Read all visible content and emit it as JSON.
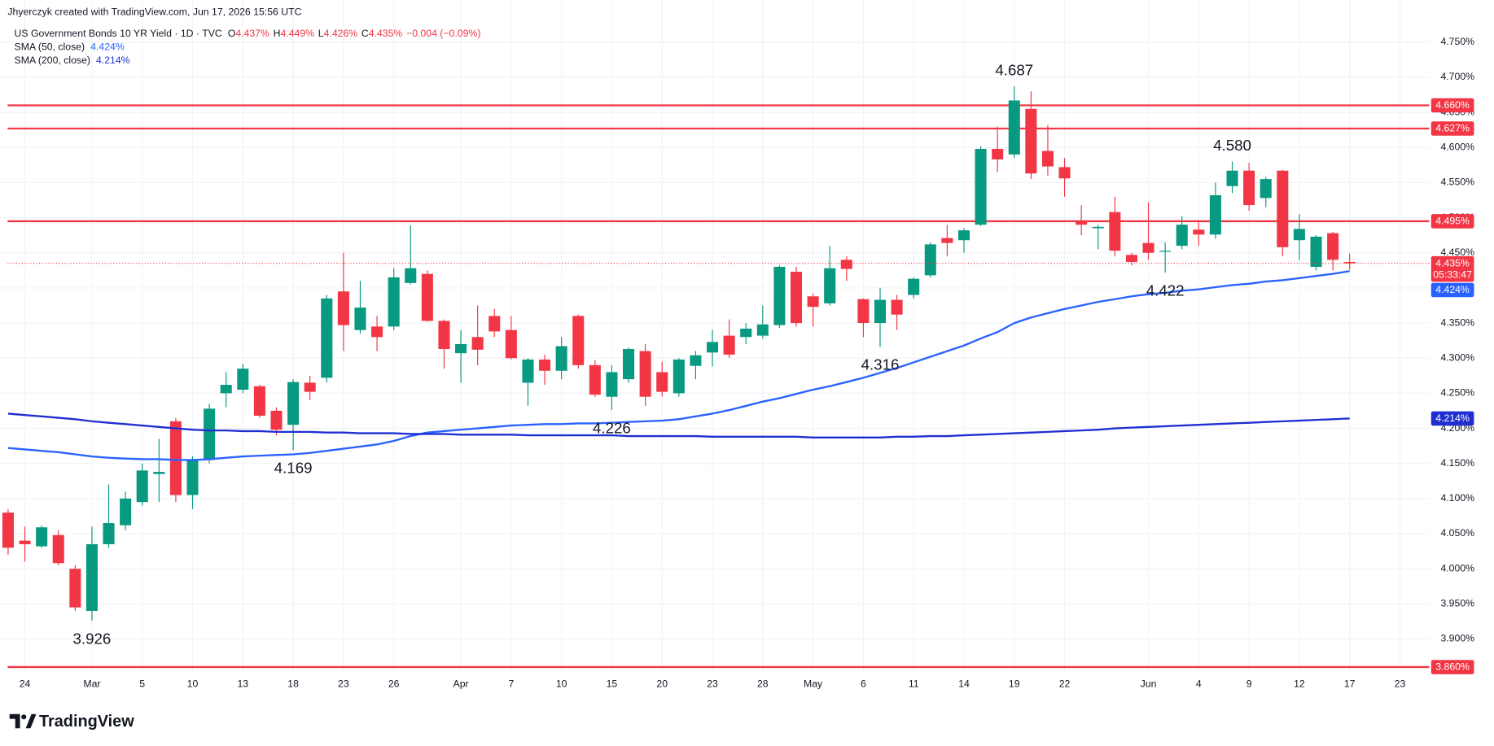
{
  "header": {
    "credit": "Jhyerczyk created with TradingView.com, Jun 17, 2026 15:56 UTC",
    "symbol": "US Government Bonds 10 YR Yield · 1D · TVC",
    "ohlc": [
      {
        "key": "O",
        "text": "4.437%"
      },
      {
        "key": "H",
        "text": "4.449%"
      },
      {
        "key": "L",
        "text": "4.426%"
      },
      {
        "key": "C",
        "text": "4.435%"
      }
    ],
    "change": "−0.004 (−0.09%)"
  },
  "footer": {
    "brand": "TradingView"
  },
  "chart_data": {
    "type": "candlestick",
    "grid": true,
    "up_color": "#089981",
    "down_color": "#f23645",
    "categories": [
      null,
      "24",
      null,
      null,
      null,
      "Mar",
      null,
      null,
      "5",
      null,
      null,
      "10",
      null,
      null,
      "13",
      null,
      null,
      "18",
      null,
      null,
      "23",
      null,
      null,
      "26",
      null,
      null,
      null,
      "Apr",
      null,
      null,
      "7",
      null,
      null,
      "10",
      null,
      null,
      "15",
      null,
      null,
      "20",
      null,
      null,
      "23",
      null,
      null,
      "28",
      null,
      null,
      "May",
      null,
      null,
      "6",
      null,
      null,
      "11",
      null,
      null,
      "14",
      null,
      null,
      "19",
      null,
      null,
      "22",
      null,
      null,
      null,
      null,
      "Jun",
      null,
      null,
      "4",
      null,
      null,
      "9",
      null,
      null,
      "12",
      null,
      null,
      "17",
      null,
      null,
      "23"
    ],
    "open": [
      4.08,
      4.04,
      4.032,
      4.048,
      4.0,
      3.94,
      4.035,
      4.062,
      4.095,
      4.135,
      4.21,
      4.105,
      4.155,
      4.25,
      4.255,
      4.26,
      4.225,
      4.205,
      4.265,
      4.272,
      4.395,
      4.34,
      4.345,
      4.345,
      4.407,
      4.42,
      4.353,
      4.307,
      4.33,
      4.36,
      4.34,
      4.265,
      4.298,
      4.282,
      4.36,
      4.29,
      4.245,
      4.27,
      4.31,
      4.28,
      4.25,
      4.289,
      4.308,
      4.332,
      4.33,
      4.332,
      4.347,
      4.423,
      4.388,
      4.378,
      4.44,
      4.384,
      4.35,
      4.383,
      4.39,
      4.418,
      4.471,
      4.468,
      4.49,
      4.598,
      4.59,
      4.655,
      4.595,
      4.572,
      4.495,
      4.485,
      4.508,
      4.447,
      4.464,
      4.452,
      4.46,
      4.483,
      4.476,
      4.545,
      4.567,
      4.528,
      4.567,
      4.468,
      4.43,
      4.478,
      4.437,
      null,
      null,
      null
    ],
    "high": [
      4.085,
      4.06,
      4.062,
      4.055,
      4.005,
      4.06,
      4.12,
      4.11,
      4.15,
      4.185,
      4.215,
      4.16,
      4.235,
      4.28,
      4.292,
      4.262,
      4.23,
      4.27,
      4.275,
      4.39,
      4.45,
      4.41,
      4.36,
      4.428,
      4.489,
      4.425,
      4.355,
      4.34,
      4.375,
      4.37,
      4.36,
      4.3,
      4.305,
      4.33,
      4.362,
      4.297,
      4.29,
      4.315,
      4.32,
      4.295,
      4.3,
      4.31,
      4.34,
      4.355,
      4.35,
      4.375,
      4.432,
      4.43,
      4.392,
      4.46,
      4.445,
      4.385,
      4.4,
      4.39,
      4.415,
      4.465,
      4.49,
      4.485,
      4.602,
      4.63,
      4.687,
      4.68,
      4.632,
      4.585,
      4.518,
      4.49,
      4.53,
      4.45,
      4.522,
      4.465,
      4.502,
      4.496,
      4.55,
      4.58,
      4.578,
      4.558,
      4.568,
      4.505,
      4.475,
      4.48,
      4.449,
      null,
      null,
      null
    ],
    "low": [
      4.02,
      4.01,
      4.03,
      4.005,
      3.94,
      3.926,
      4.03,
      4.055,
      4.09,
      4.095,
      4.095,
      4.085,
      4.15,
      4.23,
      4.25,
      4.215,
      4.19,
      4.169,
      4.24,
      4.265,
      4.31,
      4.335,
      4.31,
      4.34,
      4.405,
      4.352,
      4.285,
      4.265,
      4.29,
      4.33,
      4.298,
      4.232,
      4.262,
      4.27,
      4.285,
      4.245,
      4.226,
      4.265,
      4.232,
      4.245,
      4.245,
      4.27,
      4.288,
      4.3,
      4.32,
      4.328,
      4.343,
      4.345,
      4.345,
      4.375,
      4.41,
      4.33,
      4.316,
      4.34,
      4.385,
      4.415,
      4.445,
      4.45,
      4.488,
      4.565,
      4.585,
      4.555,
      4.56,
      4.53,
      4.475,
      4.455,
      4.445,
      4.432,
      4.44,
      4.422,
      4.455,
      4.46,
      4.47,
      4.535,
      4.51,
      4.515,
      4.445,
      4.44,
      4.425,
      4.425,
      4.426,
      null,
      null,
      null
    ],
    "close": [
      4.03,
      4.035,
      4.059,
      4.008,
      3.945,
      4.035,
      4.065,
      4.1,
      4.14,
      4.138,
      4.105,
      4.155,
      4.228,
      4.262,
      4.285,
      4.218,
      4.198,
      4.266,
      4.252,
      4.385,
      4.347,
      4.372,
      4.33,
      4.415,
      4.428,
      4.353,
      4.313,
      4.32,
      4.312,
      4.338,
      4.3,
      4.298,
      4.282,
      4.317,
      4.29,
      4.248,
      4.28,
      4.313,
      4.245,
      4.252,
      4.298,
      4.304,
      4.323,
      4.305,
      4.342,
      4.348,
      4.43,
      4.35,
      4.373,
      4.428,
      4.427,
      4.35,
      4.383,
      4.362,
      4.413,
      4.462,
      4.464,
      4.482,
      4.598,
      4.583,
      4.667,
      4.563,
      4.573,
      4.556,
      4.49,
      4.487,
      4.453,
      4.437,
      4.45,
      4.453,
      4.49,
      4.476,
      4.532,
      4.567,
      4.518,
      4.555,
      4.458,
      4.484,
      4.473,
      4.44,
      4.435,
      null,
      null,
      null
    ],
    "last_label": "4.435%",
    "countdown": "05:33:47",
    "series": [
      {
        "name": "SMA (50, close)",
        "value_label": "4.424%",
        "color": "#2962ff",
        "values": [
          4.172,
          4.17,
          4.168,
          4.166,
          4.163,
          4.16,
          4.158,
          4.157,
          4.156,
          4.156,
          4.155,
          4.155,
          4.156,
          4.158,
          4.16,
          4.161,
          4.162,
          4.163,
          4.165,
          4.168,
          4.171,
          4.174,
          4.177,
          4.182,
          4.189,
          4.194,
          4.196,
          4.198,
          4.2,
          4.202,
          4.204,
          4.205,
          4.206,
          4.206,
          4.207,
          4.207,
          4.208,
          4.209,
          4.21,
          4.211,
          4.213,
          4.217,
          4.221,
          4.226,
          4.232,
          4.238,
          4.243,
          4.249,
          4.255,
          4.26,
          4.266,
          4.272,
          4.279,
          4.286,
          4.294,
          4.302,
          4.31,
          4.318,
          4.328,
          4.337,
          4.35,
          4.358,
          4.364,
          4.37,
          4.375,
          4.38,
          4.384,
          4.388,
          4.391,
          4.393,
          4.396,
          4.398,
          4.401,
          4.404,
          4.406,
          4.409,
          4.411,
          4.414,
          4.417,
          4.42,
          4.424,
          null,
          null,
          null
        ]
      },
      {
        "name": "SMA (200, close)",
        "value_label": "4.214%",
        "color": "#1f2fd0",
        "values": [
          4.221,
          4.219,
          4.217,
          4.215,
          4.213,
          4.21,
          4.208,
          4.206,
          4.204,
          4.202,
          4.2,
          4.198,
          4.197,
          4.197,
          4.196,
          4.196,
          4.195,
          4.195,
          4.195,
          4.194,
          4.194,
          4.193,
          4.193,
          4.193,
          4.192,
          4.192,
          4.192,
          4.191,
          4.191,
          4.191,
          4.191,
          4.19,
          4.19,
          4.19,
          4.19,
          4.19,
          4.19,
          4.189,
          4.189,
          4.189,
          4.189,
          4.189,
          4.188,
          4.188,
          4.188,
          4.188,
          4.188,
          4.188,
          4.187,
          4.187,
          4.187,
          4.187,
          4.187,
          4.188,
          4.188,
          4.189,
          4.189,
          4.19,
          4.191,
          4.192,
          4.193,
          4.194,
          4.195,
          4.196,
          4.197,
          4.198,
          4.2,
          4.201,
          4.202,
          4.203,
          4.204,
          4.205,
          4.206,
          4.207,
          4.208,
          4.209,
          4.21,
          4.211,
          4.212,
          4.213,
          4.214,
          null,
          null,
          null
        ]
      }
    ],
    "levels": [
      {
        "value": 4.66,
        "label": "4.660%"
      },
      {
        "value": 4.627,
        "label": "4.627%"
      },
      {
        "value": 4.495,
        "label": "4.495%"
      },
      {
        "value": 3.86,
        "label": "3.860%"
      }
    ],
    "level_color": "#f23645",
    "annotations": [
      {
        "value": 3.926,
        "label": "3.926"
      },
      {
        "value": 4.169,
        "label": "4.169"
      },
      {
        "value": 4.226,
        "label": "4.226"
      },
      {
        "value": 4.316,
        "label": "4.316"
      },
      {
        "value": 4.687,
        "label": "4.687"
      },
      {
        "value": 4.58,
        "label": "4.580"
      },
      {
        "value": 4.422,
        "label": "4.422"
      }
    ],
    "ylim": [
      3.85,
      4.81
    ],
    "yticks": [
      {
        "value": 3.9,
        "label": "3.900%"
      },
      {
        "value": 3.95,
        "label": "3.950%"
      },
      {
        "value": 4.0,
        "label": "4.000%"
      },
      {
        "value": 4.05,
        "label": "4.050%"
      },
      {
        "value": 4.1,
        "label": "4.100%"
      },
      {
        "value": 4.15,
        "label": "4.150%"
      },
      {
        "value": 4.2,
        "label": "4.200%"
      },
      {
        "value": 4.25,
        "label": "4.250%"
      },
      {
        "value": 4.3,
        "label": "4.300%"
      },
      {
        "value": 4.35,
        "label": "4.350%"
      },
      {
        "value": 4.4,
        "label": "4.400%"
      },
      {
        "value": 4.45,
        "label": "4.450%"
      },
      {
        "value": 4.5,
        "label": "4.500%"
      },
      {
        "value": 4.55,
        "label": "4.550%"
      },
      {
        "value": 4.6,
        "label": "4.600%"
      },
      {
        "value": 4.65,
        "label": "4.650%"
      },
      {
        "value": 4.7,
        "label": "4.700%"
      },
      {
        "value": 4.75,
        "label": "4.750%"
      }
    ]
  }
}
